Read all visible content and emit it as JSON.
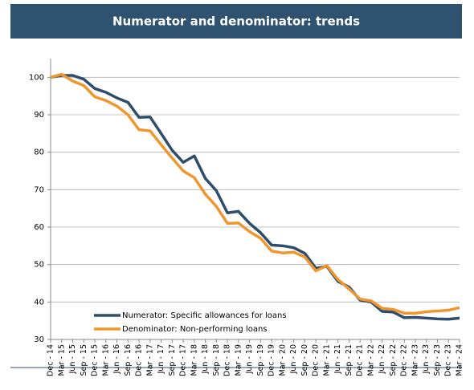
{
  "chart_data": {
    "type": "line",
    "title": "Numerator and denominator: trends",
    "categories": [
      "Dec - 14",
      "Mar - 15",
      "Jun - 15",
      "Sep - 15",
      "Dec - 15",
      "Mar - 16",
      "Jun - 16",
      "Sep - 16",
      "Dec - 16",
      "Mar - 17",
      "Jun - 17",
      "Sep - 17",
      "Dec - 17",
      "Mar - 18",
      "Jun - 18",
      "Sep - 18",
      "Dec - 18",
      "Mar - 19",
      "Jun - 19",
      "Sep - 19",
      "Dec - 19",
      "Mar - 20",
      "Jun - 20",
      "Sep - 20",
      "Dec - 20",
      "Mar - 21",
      "Jun - 21",
      "Sep - 21",
      "Dec - 21",
      "Mar - 22",
      "Jun - 22",
      "Sep - 22",
      "Dec - 22",
      "Mar - 23",
      "Jun - 23",
      "Sep - 23",
      "Dec - 23",
      "Mar - 24"
    ],
    "series": [
      {
        "name": "Numerator: Specific allowances for loans",
        "color": "#2e4d6a",
        "values": [
          100,
          100.5,
          100.5,
          99.5,
          97,
          96,
          94.5,
          93.3,
          89.3,
          89.4,
          85,
          80.5,
          77.3,
          79,
          73,
          69.7,
          63.8,
          64.2,
          61,
          58.5,
          55.2,
          55,
          54.5,
          53,
          49,
          49.5,
          45.5,
          44,
          40.5,
          40,
          37.5,
          37.3,
          35.8,
          35.9,
          35.7,
          35.5,
          35.4,
          35.7
        ]
      },
      {
        "name": "Denominator: Non-performing loans",
        "color": "#f0962e",
        "values": [
          100,
          100.8,
          99,
          97.8,
          94.8,
          93.8,
          92.3,
          90,
          86,
          85.7,
          82,
          78.4,
          75,
          73.2,
          68.8,
          65.5,
          61,
          61.1,
          58.8,
          57,
          53.6,
          53.1,
          53.3,
          52,
          48.3,
          49.7,
          46,
          43.5,
          40.8,
          40.3,
          38.3,
          38,
          37,
          37,
          37.4,
          37.6,
          37.8,
          38.5
        ]
      }
    ],
    "ylim": [
      30,
      105
    ],
    "yticks": [
      30,
      40,
      50,
      60,
      70,
      80,
      90,
      100
    ],
    "grid": true,
    "legend": "bottom-left"
  }
}
